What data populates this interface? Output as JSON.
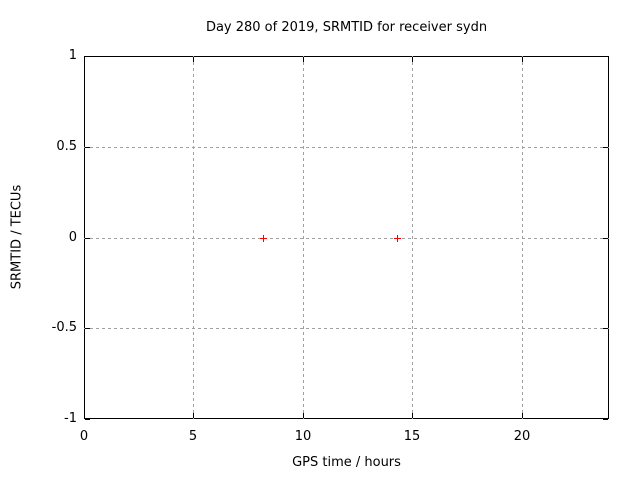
{
  "figure": {
    "background": "#ffffff"
  },
  "chart_data": {
    "type": "scatter",
    "title": "Day 280 of 2019, SRMTID for receiver sydn",
    "xlabel": "GPS time / hours",
    "ylabel": "SRMTID / TECUs",
    "xlim": [
      0,
      24
    ],
    "ylim": [
      -1,
      1
    ],
    "xticks": [
      {
        "value": 0,
        "label": "0"
      },
      {
        "value": 5,
        "label": "5"
      },
      {
        "value": 10,
        "label": "10"
      },
      {
        "value": 15,
        "label": "15"
      },
      {
        "value": 20,
        "label": "20"
      }
    ],
    "yticks": [
      {
        "value": 1,
        "label": "1"
      },
      {
        "value": 0.5,
        "label": "0.5"
      },
      {
        "value": 0,
        "label": "0"
      },
      {
        "value": -0.5,
        "label": "-0.5"
      },
      {
        "value": -1,
        "label": "-1"
      }
    ],
    "grid": true,
    "legend": "none",
    "series": [
      {
        "name": "SRMTID",
        "marker": "plus",
        "color": "#ff0000",
        "points": [
          {
            "x": 8.2,
            "y": 0
          },
          {
            "x": 14.3,
            "y": 0
          }
        ]
      }
    ]
  },
  "colors": {
    "border": "#000000",
    "grid": "#a0a0a0",
    "text": "#000000"
  }
}
